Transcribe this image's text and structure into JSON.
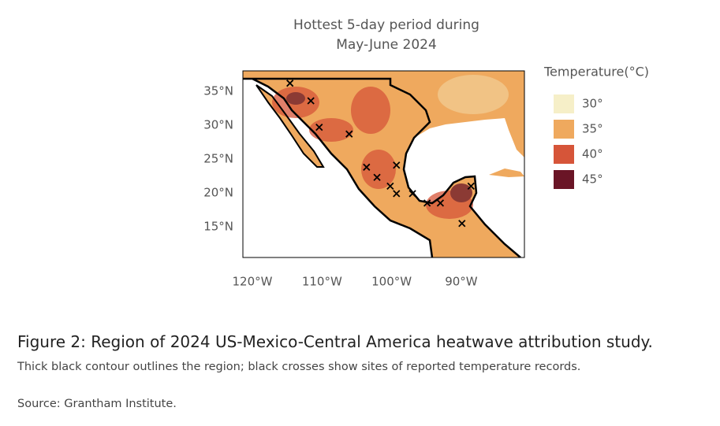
{
  "map": {
    "title": [
      "Hottest 5-day period during",
      "May-June 2024"
    ],
    "lon_ticks": [
      {
        "value": -120,
        "label": "120°W"
      },
      {
        "value": -110,
        "label": "110°W"
      },
      {
        "value": -100,
        "label": "100°W"
      },
      {
        "value": -90,
        "label": "90°W"
      }
    ],
    "lat_ticks": [
      {
        "value": 35,
        "label": "35°N"
      },
      {
        "value": 30,
        "label": "30°N"
      },
      {
        "value": 25,
        "label": "25°N"
      },
      {
        "value": 20,
        "label": "20°N"
      },
      {
        "value": 15,
        "label": "15°N"
      }
    ],
    "sites": [
      [
        -114.6,
        36.2
      ],
      [
        -111.6,
        33.6
      ],
      [
        -110.4,
        29.7
      ],
      [
        -106.1,
        28.7
      ],
      [
        -103.6,
        23.8
      ],
      [
        -102.1,
        22.3
      ],
      [
        -99.3,
        24.1
      ],
      [
        -100.2,
        21.0
      ],
      [
        -99.3,
        19.9
      ],
      [
        -97.0,
        19.9
      ],
      [
        -94.9,
        18.5
      ],
      [
        -93.0,
        18.5
      ],
      [
        -89.9,
        15.5
      ],
      [
        -88.6,
        21.0
      ]
    ],
    "legend": {
      "title": "Temperature(°C)",
      "items": [
        {
          "label": "30°",
          "color": "#f6efc8"
        },
        {
          "label": "35°",
          "color": "#efa95e"
        },
        {
          "label": "40°",
          "color": "#d65539"
        },
        {
          "label": "45°",
          "color": "#6a1526"
        }
      ]
    }
  },
  "caption": {
    "heading": "Figure 2: Region of 2024 US-Mexico-Central America heatwave attribution study.",
    "text": "Thick black contour outlines the region; black crosses show sites of reported temperature records.",
    "source": "Source: Grantham Institute."
  }
}
